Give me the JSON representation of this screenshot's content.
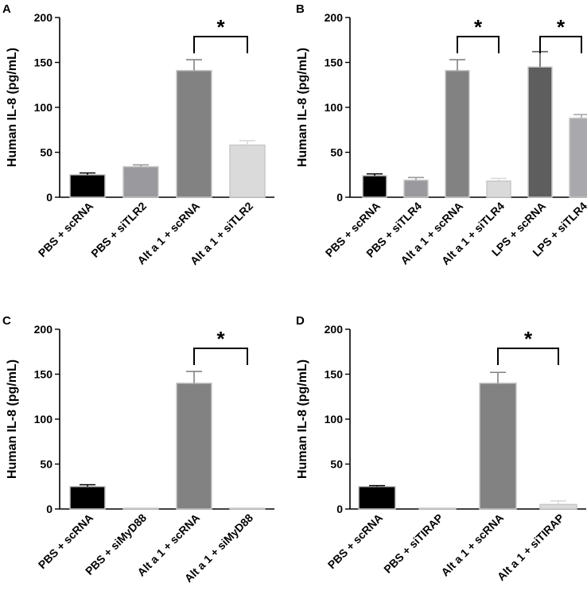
{
  "chart_data": [
    {
      "panel": "A",
      "type": "bar",
      "ylabel": "Human IL-8 (pg/mL)",
      "ylim": [
        0,
        200
      ],
      "yticks": [
        0,
        50,
        100,
        150,
        200
      ],
      "categories": [
        "PBS + scRNA",
        "PBS + siTLR2",
        "Alt a 1 + scRNA",
        "Alt a 1 + siTLR2"
      ],
      "values": [
        25,
        34,
        141,
        58
      ],
      "errors": [
        2,
        2,
        12,
        5
      ],
      "colors": [
        "#000000",
        "#9a9a9e",
        "#828282",
        "#dadada"
      ],
      "significance": [
        {
          "from": 2,
          "to": 3,
          "label": "*"
        }
      ]
    },
    {
      "panel": "B",
      "type": "bar",
      "ylabel": "Human IL-8 (pg/mL)",
      "ylim": [
        0,
        200
      ],
      "yticks": [
        0,
        50,
        100,
        150,
        200
      ],
      "categories": [
        "PBS + scRNA",
        "PBS + siTLR4",
        "Alt a 1 + scRNA",
        "Alt a 1 + siTLR4",
        "LPS + scRNA",
        "LPS + siTLR4"
      ],
      "values": [
        24,
        19,
        141,
        18,
        145,
        88
      ],
      "errors": [
        2,
        3,
        12,
        3,
        17,
        4
      ],
      "colors": [
        "#000000",
        "#9a9a9e",
        "#828282",
        "#dadada",
        "#5e5e5e",
        "#a9a9ad"
      ],
      "significance": [
        {
          "from": 2,
          "to": 3,
          "label": "*"
        },
        {
          "from": 4,
          "to": 5,
          "label": "*"
        }
      ]
    },
    {
      "panel": "C",
      "type": "bar",
      "ylabel": "Human IL-8 (pg/mL)",
      "ylim": [
        0,
        200
      ],
      "yticks": [
        0,
        50,
        100,
        150,
        200
      ],
      "categories": [
        "PBS + scRNA",
        "PBS + siMyD88",
        "Alt a 1 + scRNA",
        "Alt a 1 + siMyD88"
      ],
      "values": [
        25,
        0.5,
        140,
        0.5
      ],
      "errors": [
        2,
        0,
        13,
        0
      ],
      "colors": [
        "#000000",
        "#9a9a9e",
        "#828282",
        "#dadada"
      ],
      "significance": [
        {
          "from": 2,
          "to": 3,
          "label": "*"
        }
      ]
    },
    {
      "panel": "D",
      "type": "bar",
      "ylabel": "Human IL-8 (pg/mL)",
      "ylim": [
        0,
        200
      ],
      "yticks": [
        0,
        50,
        100,
        150,
        200
      ],
      "categories": [
        "PBS + scRNA",
        "PBS + siTIRAP",
        "Alt a 1 + scRNA",
        "Alt a 1 + siTIRAP"
      ],
      "values": [
        25,
        0.5,
        140,
        5
      ],
      "errors": [
        1,
        0,
        12,
        4
      ],
      "colors": [
        "#000000",
        "#9a9a9e",
        "#828282",
        "#dadada"
      ],
      "significance": [
        {
          "from": 2,
          "to": 3,
          "label": "*"
        }
      ]
    }
  ]
}
